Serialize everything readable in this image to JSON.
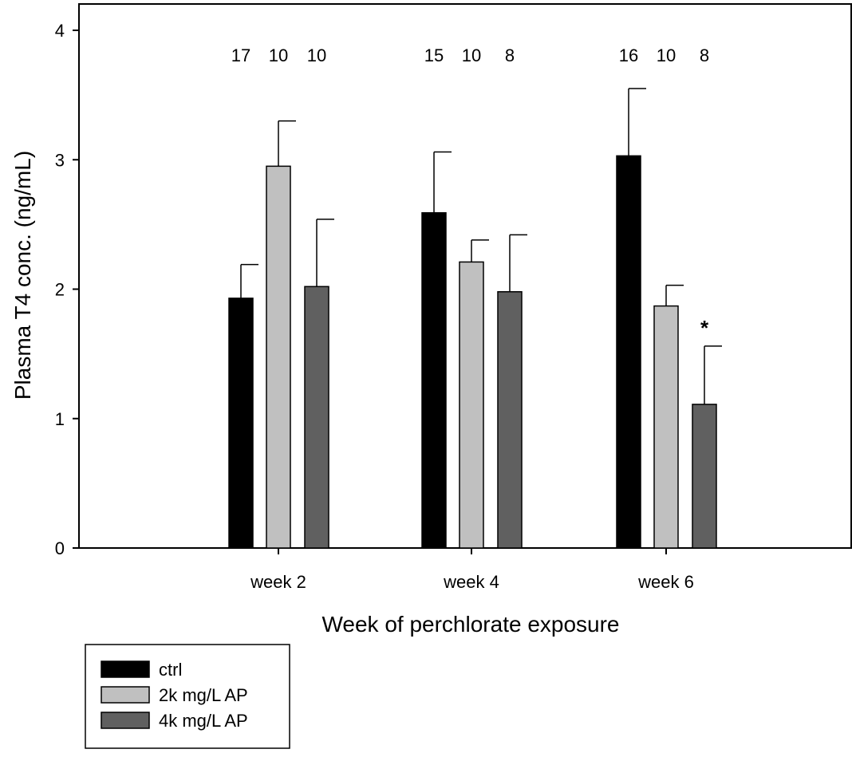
{
  "chart_data": {
    "type": "bar",
    "title": "",
    "xlabel": "Week of perchlorate exposure",
    "ylabel": "Plasma T4 conc. (ng/mL)",
    "ylim": [
      0,
      4.1
    ],
    "yticks": [
      0,
      1,
      2,
      3,
      4
    ],
    "categories": [
      "week 2",
      "week 4",
      "week 6"
    ],
    "series": [
      {
        "name": "ctrl",
        "color": "#000000",
        "values": [
          1.93,
          2.59,
          3.03
        ],
        "errors": [
          0.26,
          0.47,
          0.52
        ],
        "n": [
          "17",
          "15",
          "16"
        ]
      },
      {
        "name": "2k mg/L AP",
        "color": "#c0c0c0",
        "values": [
          2.95,
          2.21,
          1.87
        ],
        "errors": [
          0.35,
          0.17,
          0.16
        ],
        "n": [
          "10",
          "10",
          "10"
        ]
      },
      {
        "name": "4k mg/L AP",
        "color": "#606060",
        "values": [
          2.02,
          1.98,
          1.11
        ],
        "errors": [
          0.52,
          0.44,
          0.45
        ],
        "n": [
          "10",
          "8",
          "8"
        ]
      }
    ],
    "annotations": [
      {
        "text": "*",
        "category": "week 6",
        "series": "4k mg/L AP"
      }
    ],
    "grid": false,
    "legend_position": "bottom-left"
  }
}
